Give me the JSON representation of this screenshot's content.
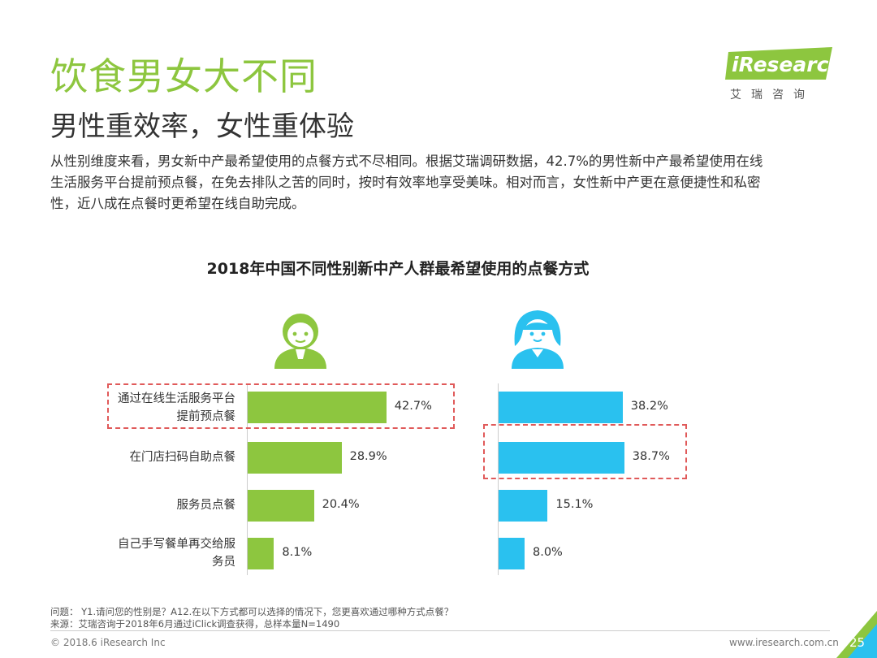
{
  "header": {
    "title": "饮食男女大不同",
    "subtitle": "男性重效率，女性重体验",
    "paragraph_lines": [
      "从性别维度来看，男女新中产最希望使用的点餐方式不尽相同。根据艾瑞调研数据，42.7%的男性新中产最希望使用在线",
      "生活服务平台提前预点餐，在免去排队之苦的同时，按时有效率地享受美味。相对而言，女性新中产更在意便捷性和私密",
      "性，近八成在点餐时更希望在线自助完成。"
    ]
  },
  "logo": {
    "brand": "iResearch",
    "sub": "艾瑞咨询"
  },
  "chart_data": {
    "type": "bar",
    "orientation": "horizontal",
    "title": "2018年中国不同性别新中产人群最希望使用的点餐方式",
    "categories": [
      [
        "通过在线生活服务平台",
        "提前预点餐"
      ],
      [
        "在门店扫码自助点餐"
      ],
      [
        "服务员点餐"
      ],
      [
        "自己手写餐单再交给服",
        "务员"
      ]
    ],
    "value_labels": {
      "male": [
        "42.7%",
        "28.9%",
        "20.4%",
        "8.1%"
      ],
      "female": [
        "38.2%",
        "38.7%",
        "15.1%",
        "8.0%"
      ]
    },
    "series": [
      {
        "values": [
          42.7,
          28.9,
          20.4,
          8.1
        ],
        "color": "#8dc63f",
        "icon": "male-avatar-icon"
      },
      {
        "values": [
          38.2,
          38.7,
          15.1,
          8.0
        ],
        "color": "#2ac1ef",
        "icon": "female-avatar-icon"
      }
    ],
    "highlight": {
      "male_category_index": 0,
      "female_category_index": 1,
      "color": "#e05a5a"
    },
    "grid": false
  },
  "footer": {
    "question": "问题： Y1.请问您的性别是？A12.在以下方式都可以选择的情况下，您更喜欢通过哪种方式点餐？",
    "source": "来源：艾瑞咨询于2018年6月通过iClick调查获得，总样本量N=1490",
    "copyright": "© 2018.6 iResearch Inc",
    "website": "www.iresearch.com.cn",
    "page": "25"
  },
  "colors": {
    "accent": "#8dc63f",
    "female": "#2ac1ef",
    "highlight": "#e05a5a"
  }
}
